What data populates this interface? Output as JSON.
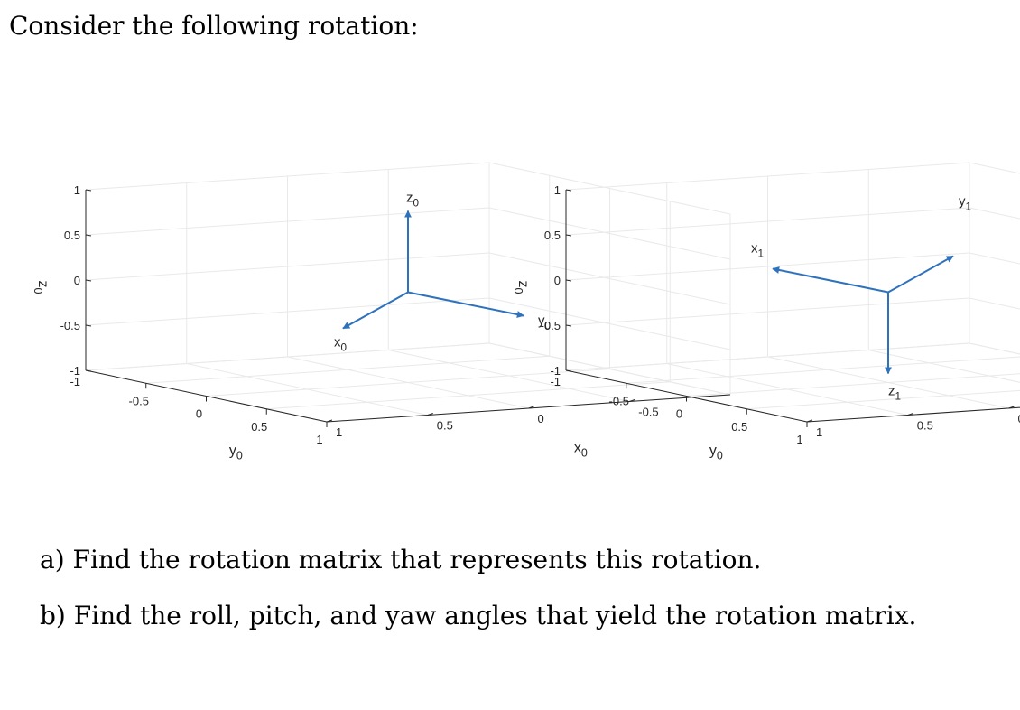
{
  "text": {
    "intro": "Consider the following rotation:",
    "question_a": "a)  Find the rotation matrix that represents this rotation.",
    "question_b": "b)  Find the roll, pitch, and yaw angles that yield the rotation matrix."
  },
  "colors": {
    "vector": "#2e72bd",
    "axis_line": "#262626",
    "grid": "#e9e9e9",
    "text": "#000000"
  },
  "chart_data": [
    {
      "type": "3d-vector-plot",
      "axis_labels": {
        "x": "x0",
        "y": "y0",
        "z": "z0"
      },
      "xlim": [
        -1,
        1
      ],
      "ylim": [
        -1,
        1
      ],
      "zlim": [
        -1,
        1
      ],
      "x_ticks": [
        "-0.5",
        "0",
        "0.5",
        "1"
      ],
      "y_ticks": [
        "-1",
        "-0.5",
        "0",
        "0.5",
        "1"
      ],
      "z_ticks": [
        "1",
        "0.5",
        "0",
        "-0.5",
        "-1"
      ],
      "grid": true,
      "vectors": [
        {
          "label": "x0",
          "dir": [
            1,
            0,
            0
          ]
        },
        {
          "label": "y0",
          "dir": [
            0,
            1,
            0
          ]
        },
        {
          "label": "z0",
          "dir": [
            0,
            0,
            1
          ]
        }
      ]
    },
    {
      "type": "3d-vector-plot",
      "axis_labels": {
        "x": "x0",
        "y": "y0",
        "z": "z0"
      },
      "xlim": [
        -1,
        1
      ],
      "ylim": [
        -1,
        1
      ],
      "zlim": [
        -1,
        1
      ],
      "x_ticks": [
        "-1",
        "-0.5",
        "0",
        "0.5",
        "1"
      ],
      "y_ticks": [
        "-1",
        "-0.5",
        "0",
        "0.5",
        "1"
      ],
      "z_ticks": [
        "1",
        "0.5",
        "0",
        "-0.5",
        "-1"
      ],
      "grid": true,
      "vectors": [
        {
          "label": "x1",
          "dir": [
            0,
            -1,
            0
          ]
        },
        {
          "label": "y1",
          "dir": [
            -1,
            0,
            0
          ]
        },
        {
          "label": "z1",
          "dir": [
            0,
            0,
            -1
          ]
        }
      ]
    }
  ]
}
